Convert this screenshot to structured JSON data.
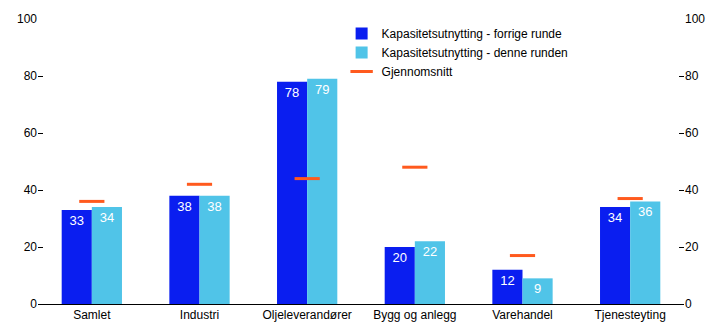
{
  "chart_data": {
    "type": "bar",
    "categories": [
      "Samlet",
      "Industri",
      "Oljeleverandører",
      "Bygg og anlegg",
      "Varehandel",
      "Tjenesteyting"
    ],
    "series": [
      {
        "name": "Kapasitetsutnytting - forrige runde",
        "color": "#0a1ef0",
        "values": [
          33,
          38,
          78,
          20,
          12,
          34
        ]
      },
      {
        "name": "Kapasitetsutnytting - denne runden",
        "color": "#50c4e8",
        "values": [
          34,
          38,
          79,
          22,
          9,
          36
        ]
      },
      {
        "name": "Gjennomsnitt",
        "color": "#ff5a1e",
        "type": "scatter",
        "marker": "dash",
        "values": [
          36,
          42,
          44,
          48,
          17,
          37
        ]
      }
    ],
    "ylim": [
      0,
      100
    ],
    "yticks": [
      0,
      20,
      40,
      60,
      80,
      100
    ],
    "y2lim": [
      0,
      100
    ],
    "y2ticks": [
      0,
      20,
      40,
      60,
      80,
      100
    ],
    "grid": false,
    "legend": "top right",
    "data_labels": true
  }
}
